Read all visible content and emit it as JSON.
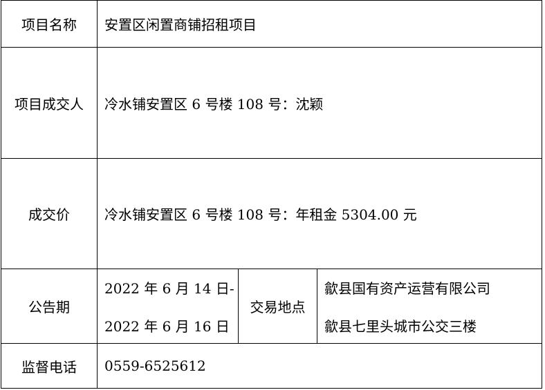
{
  "rows": {
    "project_name": {
      "label": "项目名称",
      "value": "安置区闲置商铺招租项目"
    },
    "winner": {
      "label": "项目成交人",
      "value": "冷水铺安置区 6 号楼 108 号：沈颖"
    },
    "price": {
      "label": "成交价",
      "value": "冷水铺安置区 6 号楼 108 号：年租金 5304.00 元"
    },
    "notice": {
      "label": "公告期",
      "period_start": "2022 年 6 月 14 日-",
      "period_end": "2022 年 6 月 16 日",
      "location_label": "交易地点",
      "location_line1": "歙县国有资产运营有限公司",
      "location_line2": "歙县七里头城市公交三楼"
    },
    "phone": {
      "label": "监督电话",
      "value": "0559-6525612"
    }
  }
}
